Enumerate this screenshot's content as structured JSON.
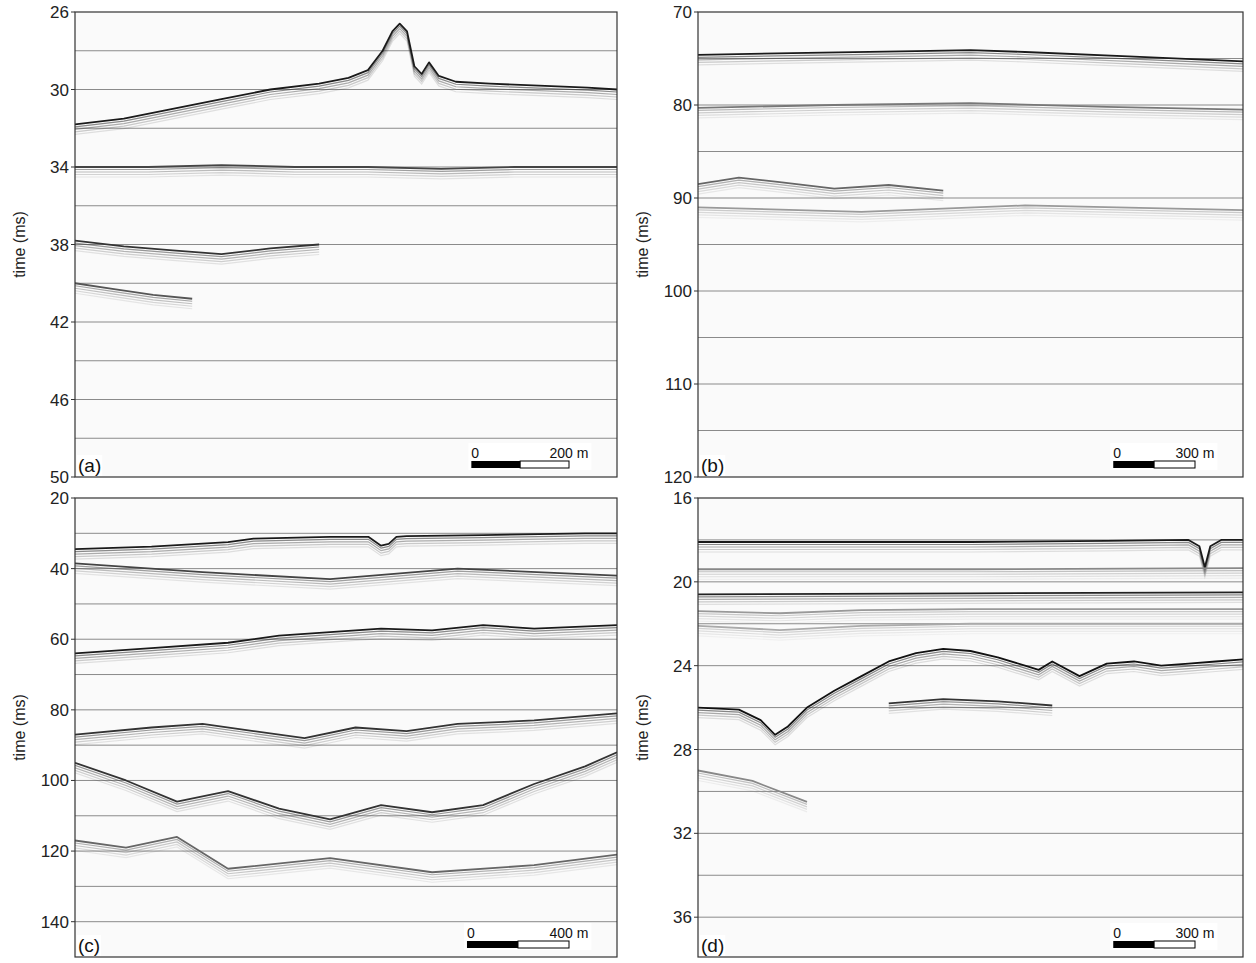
{
  "chart_data": [
    {
      "type": "seismic_section",
      "panel": "(a)",
      "y_label": "time (ms)",
      "xlim": [
        0,
        1110
      ],
      "ylim": [
        26,
        50
      ],
      "yticks": [
        26,
        30,
        34,
        38,
        42,
        46,
        50
      ],
      "grid_lines": [
        28,
        30,
        32,
        34,
        36,
        38,
        40,
        42,
        44,
        46,
        48
      ],
      "scale_bar": {
        "ticks": [
          0,
          {
            "value": 200,
            "label": "200 m"
          }
        ]
      },
      "series": [
        {
          "color": "#1a1a1a",
          "x": [
            0,
            100,
            200,
            300,
            400,
            500,
            560,
            600,
            630,
            650,
            665,
            680,
            695,
            710,
            725,
            745,
            780,
            850,
            950,
            1050,
            1110
          ],
          "values": [
            31.8,
            31.5,
            31.0,
            30.5,
            30.0,
            29.7,
            29.4,
            29.0,
            28.0,
            27.0,
            26.6,
            27.0,
            28.8,
            29.2,
            28.6,
            29.3,
            29.6,
            29.7,
            29.8,
            29.9,
            30.0
          ]
        },
        {
          "color": "#444444",
          "x": [
            0,
            150,
            300,
            450,
            600,
            750,
            900,
            1110
          ],
          "values": [
            34.0,
            34.0,
            33.9,
            34.0,
            34.0,
            34.1,
            34.0,
            34.0
          ]
        },
        {
          "color": "#333333",
          "x": [
            0,
            100,
            200,
            300,
            400,
            500
          ],
          "values": [
            37.8,
            38.1,
            38.3,
            38.5,
            38.2,
            38.0
          ]
        },
        {
          "color": "#555555",
          "x": [
            0,
            80,
            160,
            240
          ],
          "values": [
            40.0,
            40.3,
            40.6,
            40.8
          ]
        }
      ]
    },
    {
      "type": "seismic_section",
      "panel": "(b)",
      "y_label": "time (ms)",
      "xlim": [
        0,
        2000
      ],
      "ylim": [
        70,
        120
      ],
      "yticks": [
        70,
        80,
        90,
        100,
        110,
        120
      ],
      "grid_lines": [
        75,
        80,
        85,
        90,
        95,
        100,
        105,
        110,
        115
      ],
      "scale_bar": {
        "ticks": [
          0,
          {
            "value": 300,
            "label": "300 m"
          }
        ]
      },
      "series": [
        {
          "color": "#1a1a1a",
          "x": [
            0,
            400,
            800,
            1000,
            1200,
            1600,
            2000
          ],
          "values": [
            74.6,
            74.4,
            74.2,
            74.1,
            74.3,
            74.8,
            75.3
          ]
        },
        {
          "color": "#777777",
          "x": [
            0,
            500,
            1000,
            1500,
            2000
          ],
          "values": [
            80.3,
            80.0,
            79.8,
            80.2,
            80.5
          ]
        },
        {
          "color": "#666666",
          "x": [
            0,
            150,
            300,
            500,
            700,
            900
          ],
          "values": [
            88.5,
            87.8,
            88.3,
            89.0,
            88.6,
            89.2
          ]
        },
        {
          "color": "#999999",
          "x": [
            0,
            600,
            1200,
            2000
          ],
          "values": [
            91.0,
            91.5,
            90.8,
            91.3
          ]
        }
      ]
    },
    {
      "type": "seismic_section",
      "panel": "(c)",
      "y_label": "time (ms)",
      "xlim": [
        0,
        2125
      ],
      "ylim": [
        20,
        150
      ],
      "yticks": [
        20,
        40,
        60,
        80,
        100,
        120,
        140
      ],
      "grid_lines": [
        30,
        40,
        50,
        60,
        70,
        80,
        90,
        100,
        110,
        120,
        130,
        140
      ],
      "scale_bar": {
        "ticks": [
          0,
          {
            "value": 400,
            "label": "400 m"
          }
        ]
      },
      "series": [
        {
          "color": "#1a1a1a",
          "x": [
            0,
            300,
            600,
            700,
            1000,
            1150,
            1200,
            1230,
            1260,
            1300,
            1600,
            2000,
            2125
          ],
          "values": [
            34.5,
            33.8,
            32.5,
            31.5,
            31.0,
            31.0,
            33.5,
            33.0,
            31.0,
            30.8,
            30.5,
            30.0,
            30.0
          ]
        },
        {
          "color": "#444444",
          "x": [
            0,
            500,
            1000,
            1500,
            2125
          ],
          "values": [
            38.5,
            41.0,
            43.0,
            40.0,
            42.0
          ]
        },
        {
          "color": "#1a1a1a",
          "x": [
            0,
            300,
            600,
            800,
            1000,
            1200,
            1400,
            1600,
            1800,
            2125
          ],
          "values": [
            64.0,
            62.5,
            61.0,
            59.0,
            58.0,
            57.0,
            57.5,
            56.0,
            57.0,
            56.0
          ]
        },
        {
          "color": "#333333",
          "x": [
            0,
            300,
            500,
            700,
            900,
            1100,
            1300,
            1500,
            1800,
            2125
          ],
          "values": [
            87.0,
            85.0,
            84.0,
            86.0,
            88.0,
            85.0,
            86.0,
            84.0,
            83.0,
            81.0
          ]
        },
        {
          "color": "#333333",
          "x": [
            0,
            200,
            400,
            600,
            800,
            1000,
            1200,
            1400,
            1600,
            1800,
            2000,
            2125
          ],
          "values": [
            95.0,
            100.0,
            106.0,
            103.0,
            108.0,
            111.0,
            107.0,
            109.0,
            107.0,
            101.0,
            96.0,
            92.0
          ]
        },
        {
          "color": "#666666",
          "x": [
            0,
            200,
            400,
            600,
            1000,
            1400,
            1800,
            2125
          ],
          "values": [
            117.0,
            119.0,
            116.0,
            125.0,
            122.0,
            126.0,
            124.0,
            121.0
          ]
        }
      ]
    },
    {
      "type": "seismic_section",
      "panel": "(d)",
      "y_label": "time (ms)",
      "xlim": [
        0,
        2000
      ],
      "ylim": [
        16,
        37.9
      ],
      "yticks": [
        16,
        20,
        24,
        28,
        32,
        36
      ],
      "grid_lines": [
        18,
        20,
        22,
        24,
        26,
        28,
        30,
        32,
        34,
        36
      ],
      "scale_bar": {
        "ticks": [
          0,
          {
            "value": 300,
            "label": "300 m"
          }
        ]
      },
      "series": [
        {
          "color": "#1a1a1a",
          "x": [
            0,
            500,
            1000,
            1500,
            1800,
            1840,
            1860,
            1880,
            1920,
            2000
          ],
          "values": [
            18.1,
            18.1,
            18.1,
            18.05,
            18.0,
            18.3,
            19.3,
            18.3,
            18.0,
            18.0
          ]
        },
        {
          "color": "#888888",
          "x": [
            0,
            1000,
            2000
          ],
          "values": [
            19.4,
            19.4,
            19.35
          ]
        },
        {
          "color": "#222222",
          "x": [
            0,
            1000,
            2000
          ],
          "values": [
            20.6,
            20.55,
            20.5
          ]
        },
        {
          "color": "#999999",
          "x": [
            0,
            300,
            600,
            1000,
            2000
          ],
          "values": [
            21.4,
            21.5,
            21.35,
            21.3,
            21.3
          ]
        },
        {
          "color": "#aaaaaa",
          "x": [
            0,
            300,
            600,
            1000,
            2000
          ],
          "values": [
            22.1,
            22.3,
            22.1,
            22.0,
            22.0
          ]
        },
        {
          "color": "#111111",
          "x": [
            0,
            150,
            230,
            283,
            330,
            400,
            500,
            600,
            700,
            800,
            900,
            1000,
            1100,
            1200,
            1250,
            1300,
            1400,
            1500,
            1600,
            1700,
            1800,
            1900,
            2000
          ],
          "values": [
            26.0,
            26.1,
            26.6,
            27.3,
            26.9,
            26.0,
            25.2,
            24.5,
            23.8,
            23.4,
            23.2,
            23.3,
            23.6,
            24.0,
            24.2,
            23.8,
            24.5,
            23.9,
            23.8,
            24.0,
            23.9,
            23.8,
            23.7
          ]
        },
        {
          "color": "#333333",
          "x": [
            700,
            900,
            1100,
            1300
          ],
          "values": [
            25.8,
            25.6,
            25.7,
            25.9
          ]
        },
        {
          "color": "#888888",
          "x": [
            0,
            200,
            400
          ],
          "values": [
            29.0,
            29.5,
            30.5
          ]
        }
      ]
    }
  ]
}
